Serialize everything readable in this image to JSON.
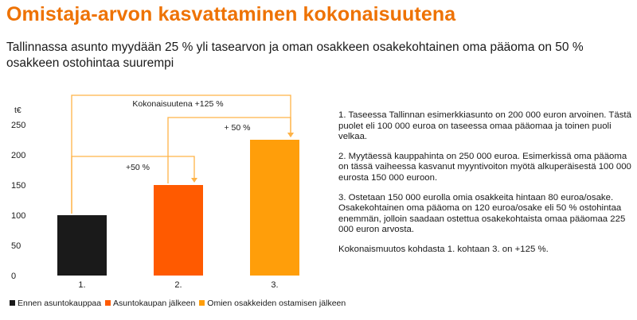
{
  "title": "Omistaja-arvon kasvattaminen kokonaisuutena",
  "subtitle": "Tallinnassa asunto myydään 25 % yli tasearvon ja oman osakkeen osakekohtainen oma pääoma on 50 % osakkeen ostohintaa suurempi",
  "chart_data": {
    "type": "bar",
    "unit_label": "t€",
    "categories": [
      "1.",
      "2.",
      "3."
    ],
    "values": [
      100,
      150,
      225
    ],
    "colors": [
      "#1a1a1a",
      "#ff5a00",
      "#ff9e0a"
    ],
    "ylim": [
      0,
      250
    ],
    "yticks": [
      0,
      50,
      100,
      150,
      200,
      250
    ],
    "grid": false,
    "annotations": [
      {
        "from": 0,
        "to": 1,
        "label": "+50 %"
      },
      {
        "from": 1,
        "to": 2,
        "label": "+ 50 %"
      },
      {
        "from": 0,
        "to": 2,
        "label": "Kokonaisuutena +125 %"
      }
    ],
    "annotation_color": "#ffb347",
    "legend": {
      "placement": "bottom-left",
      "items": [
        {
          "label": "Ennen asuntokauppaa",
          "color": "#1a1a1a"
        },
        {
          "label": "Asuntokaupan jälkeen",
          "color": "#ff5a00"
        },
        {
          "label": "Omien osakkeiden ostamisen jälkeen",
          "color": "#ff9e0a"
        }
      ]
    }
  },
  "notes": [
    "1. Taseessa Tallinnan esimerkkiasunto on 200 000 euron arvoinen. Tästä puolet eli 100 000 euroa on taseessa omaa pääomaa ja toinen puoli velkaa.",
    "2. Myytäessä kauppahinta on 250 000 euroa. Esimerkissä oma pääoma on tässä vaiheessa kasvanut myyntivoiton myötä alkuperäisestä 100 000 eurosta 150 000 euroon.",
    "3. Ostetaan 150 000 eurolla omia osakkeita hintaan 80 euroa/osake. Osakekohtainen oma pääoma on 120 euroa/osake eli 50 % ostohintaa enemmän, jolloin saadaan ostettua osakekohtaista omaa pääomaa 225 000 euron arvosta.",
    "Kokonaismuutos kohdasta 1. kohtaan 3. on +125 %."
  ]
}
